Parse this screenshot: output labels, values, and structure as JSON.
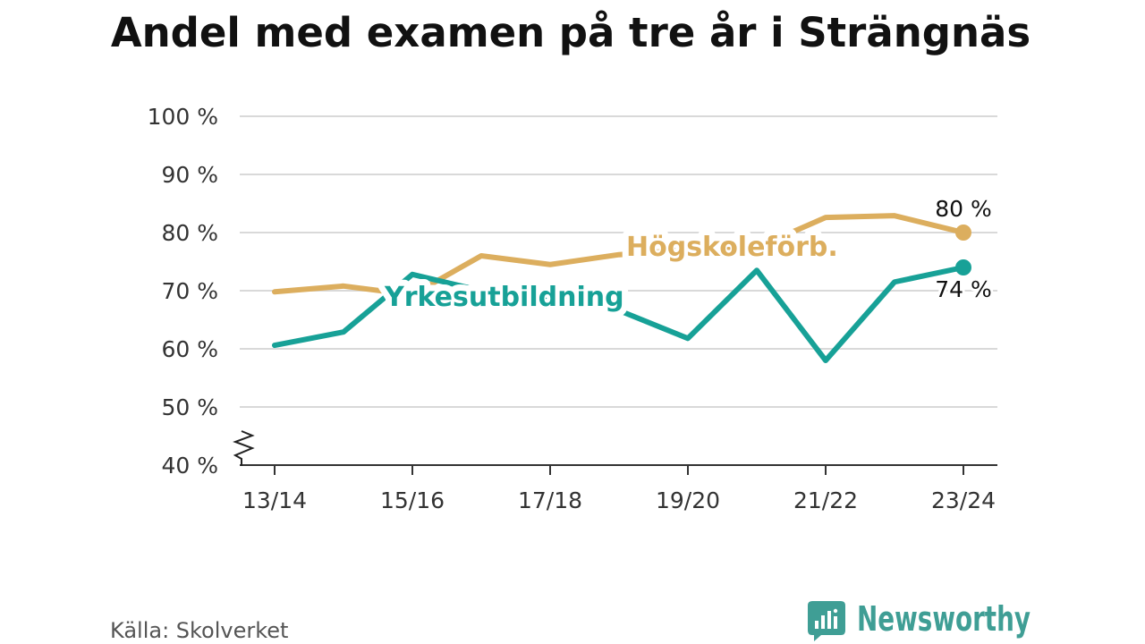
{
  "source": "Källa: Skolverket",
  "logo": {
    "text": "Newsworthy",
    "icon": "newsworthy-logo-icon"
  },
  "colors": {
    "background": "#ffffff",
    "grid": "#d9d9d9",
    "axis": "#333333",
    "logo": "#3f9e95"
  },
  "chart_data": {
    "type": "line",
    "title": "Andel med examen på tre år i Strängnäs",
    "x": [
      "13/14",
      "14/15",
      "15/16",
      "16/17",
      "17/18",
      "18/19",
      "19/20",
      "20/21",
      "21/22",
      "22/23",
      "23/24"
    ],
    "x_tick_labels": [
      "13/14",
      "15/16",
      "17/18",
      "19/20",
      "21/22",
      "23/24"
    ],
    "ylim": [
      40,
      100
    ],
    "y_ticks": [
      40,
      50,
      60,
      70,
      80,
      90,
      100
    ],
    "y_tick_labels": [
      "40 %",
      "50 %",
      "60 %",
      "70 %",
      "80 %",
      "90 %",
      "100 %"
    ],
    "y_axis_break": true,
    "grid": true,
    "legend": "inline",
    "series": [
      {
        "name": "Högskoleförb.",
        "color": "#dcae5e",
        "values": [
          69.8,
          70.8,
          69.3,
          76.0,
          74.5,
          76.2,
          77.0,
          77.4,
          82.6,
          82.9,
          80.0
        ],
        "end_label": "80 %"
      },
      {
        "name": "Yrkesutbildning",
        "color": "#17a197",
        "values": [
          60.6,
          62.9,
          72.8,
          70.0,
          69.0,
          66.6,
          61.8,
          73.5,
          58.0,
          71.5,
          74.0
        ],
        "end_label": "74 %"
      }
    ]
  }
}
